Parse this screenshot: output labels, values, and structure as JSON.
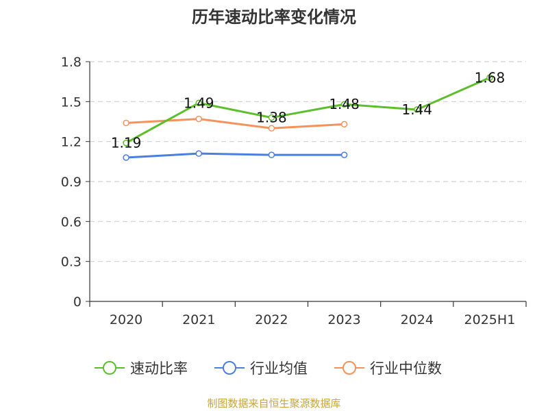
{
  "chart_data": {
    "type": "line",
    "title": "历年速动比率变化情况",
    "categories": [
      "2020",
      "2021",
      "2022",
      "2023",
      "2024",
      "2025H1"
    ],
    "ylim": [
      0,
      1.8
    ],
    "yticks": [
      "0",
      "0.3",
      "0.6",
      "0.9",
      "1.2",
      "1.5",
      "1.8"
    ],
    "grid": true,
    "legend_position": "bottom",
    "series": [
      {
        "name": "速动比率",
        "color": "#5cbf2a",
        "values": [
          1.19,
          1.49,
          1.38,
          1.48,
          1.44,
          1.68
        ],
        "labels": [
          "1.19",
          "1.49",
          "1.38",
          "1.48",
          "1.44",
          "1.68"
        ]
      },
      {
        "name": "行业均值",
        "color": "#4a7fe0",
        "values": [
          1.08,
          1.11,
          1.1,
          1.1,
          null,
          null
        ]
      },
      {
        "name": "行业中位数",
        "color": "#f5925b",
        "values": [
          1.34,
          1.37,
          1.3,
          1.33,
          null,
          null
        ]
      }
    ]
  },
  "footer": {
    "source": "制图数据来自恒生聚源数据库"
  }
}
